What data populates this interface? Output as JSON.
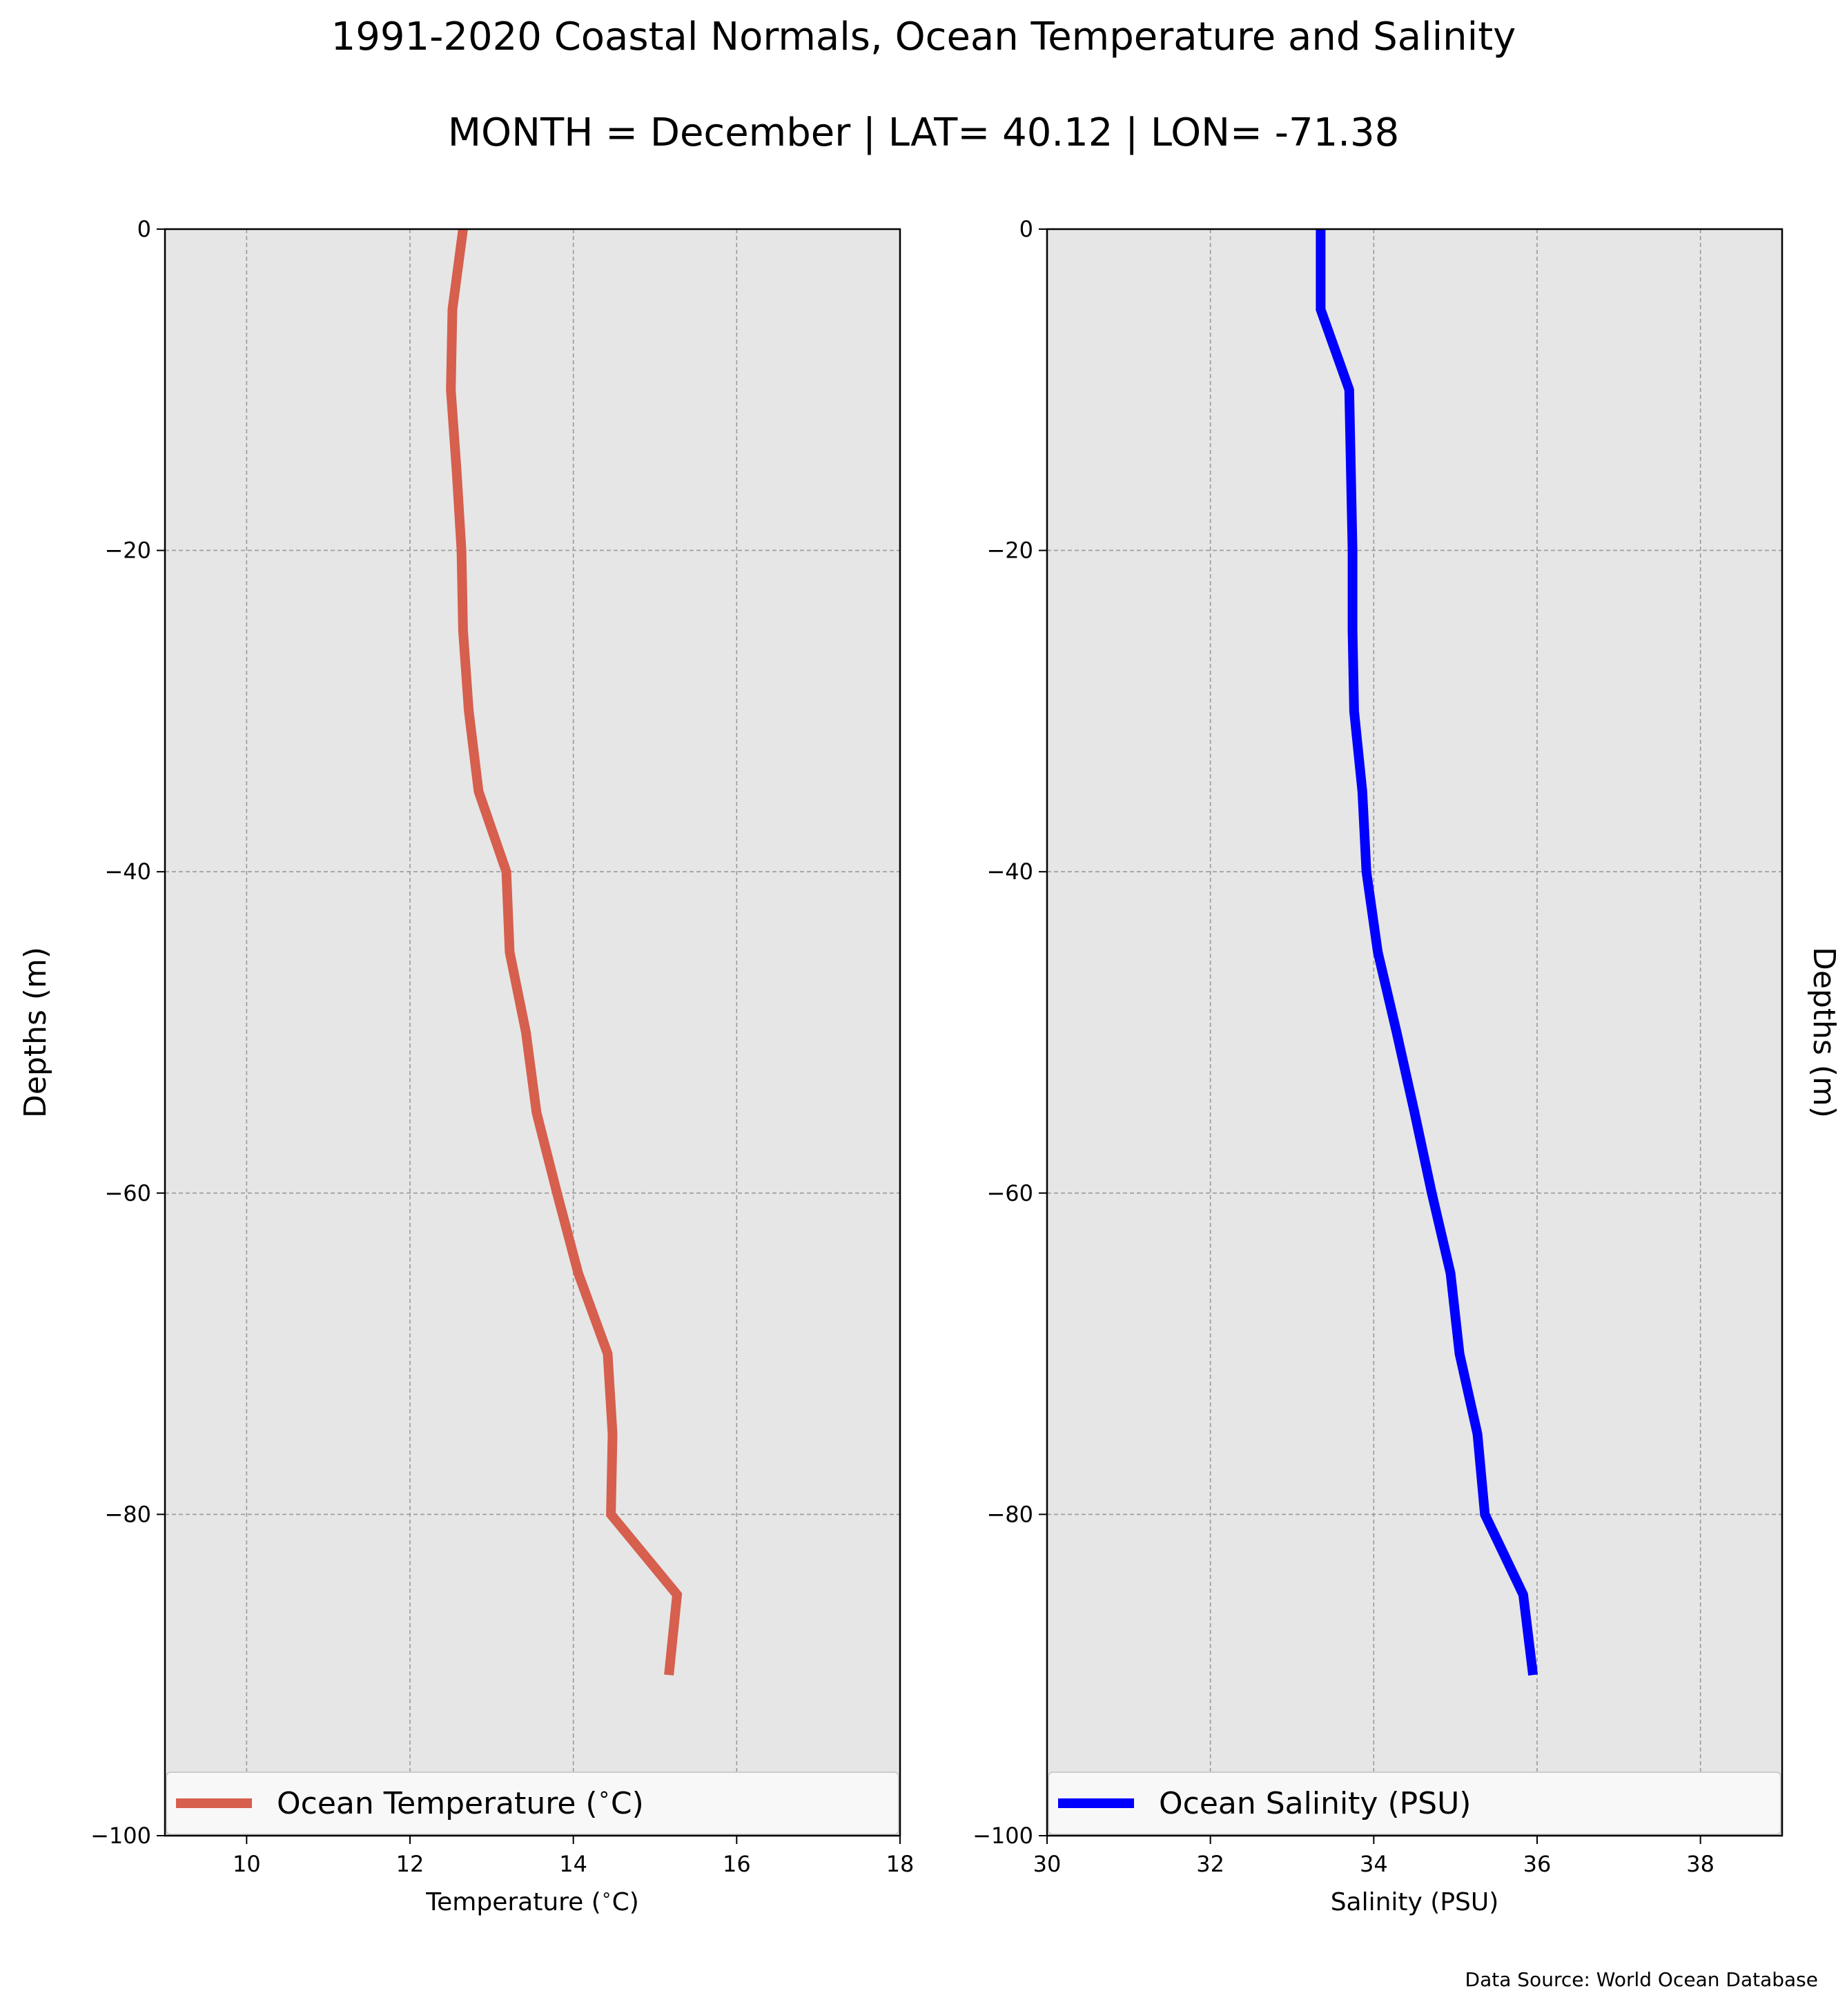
{
  "figure": {
    "title": "1991-2020 Coastal Normals, Ocean Temperature and Salinity",
    "subtitle": "MONTH = December | LAT= 40.12 | LON= -71.38",
    "source": "Data Source: World Ocean Database"
  },
  "chart_data": [
    {
      "type": "line",
      "orientation": "vertical-profile",
      "title": "",
      "xlabel": "Temperature ($^\\circ$C)",
      "ylabel": "Depths (m)",
      "xlim": [
        9,
        18
      ],
      "ylim": [
        -100,
        0
      ],
      "xticks": [
        10,
        12,
        14,
        16,
        18
      ],
      "xtick_labels": [
        "10",
        "12",
        "14",
        "16",
        "18"
      ],
      "yticks": [
        0,
        -20,
        -40,
        -60,
        -80,
        -100
      ],
      "ytick_labels": [
        "0",
        "−20",
        "−40",
        "−60",
        "−80",
        "−100"
      ],
      "grid": true,
      "legend_position": "bottom",
      "series": [
        {
          "name": "Ocean Temperature ($^\\circ$C)",
          "color": "#d65f4e",
          "x": [
            12.65,
            12.52,
            12.5,
            12.57,
            12.63,
            12.65,
            12.72,
            12.84,
            13.18,
            13.22,
            13.42,
            13.55,
            13.8,
            14.06,
            14.42,
            14.48,
            14.46,
            15.27,
            15.17
          ],
          "y": [
            0,
            -5,
            -10,
            -15,
            -20,
            -25,
            -30,
            -35,
            -40,
            -45,
            -50,
            -55,
            -60,
            -65,
            -70,
            -75,
            -80,
            -85,
            -90
          ]
        }
      ]
    },
    {
      "type": "line",
      "orientation": "vertical-profile",
      "title": "",
      "xlabel": "Salinity (PSU)",
      "ylabel": "Depths (m)",
      "xlim": [
        30,
        39
      ],
      "ylim": [
        -100,
        0
      ],
      "xticks": [
        30,
        32,
        34,
        36,
        38
      ],
      "xtick_labels": [
        "30",
        "32",
        "34",
        "36",
        "38"
      ],
      "yticks": [
        0,
        -20,
        -40,
        -60,
        -80,
        -100
      ],
      "ytick_labels": [
        "0",
        "−20",
        "−40",
        "−60",
        "−80",
        "−100"
      ],
      "grid": true,
      "legend_position": "bottom",
      "series": [
        {
          "name": "Ocean Salinity (PSU)",
          "color": "#0000ff",
          "x": [
            33.35,
            33.35,
            33.7,
            33.72,
            33.74,
            33.74,
            33.76,
            33.86,
            33.91,
            34.05,
            34.28,
            34.5,
            34.71,
            34.94,
            35.05,
            35.27,
            35.36,
            35.83,
            35.95
          ],
          "y": [
            0,
            -5,
            -10,
            -15,
            -20,
            -25,
            -30,
            -35,
            -40,
            -45,
            -50,
            -55,
            -60,
            -65,
            -70,
            -75,
            -80,
            -85,
            -90
          ]
        }
      ]
    }
  ],
  "colors": {
    "plot_background": "#e6e6e6",
    "grid": "#9a9a9a",
    "legend_background": "#f8f8f8"
  }
}
